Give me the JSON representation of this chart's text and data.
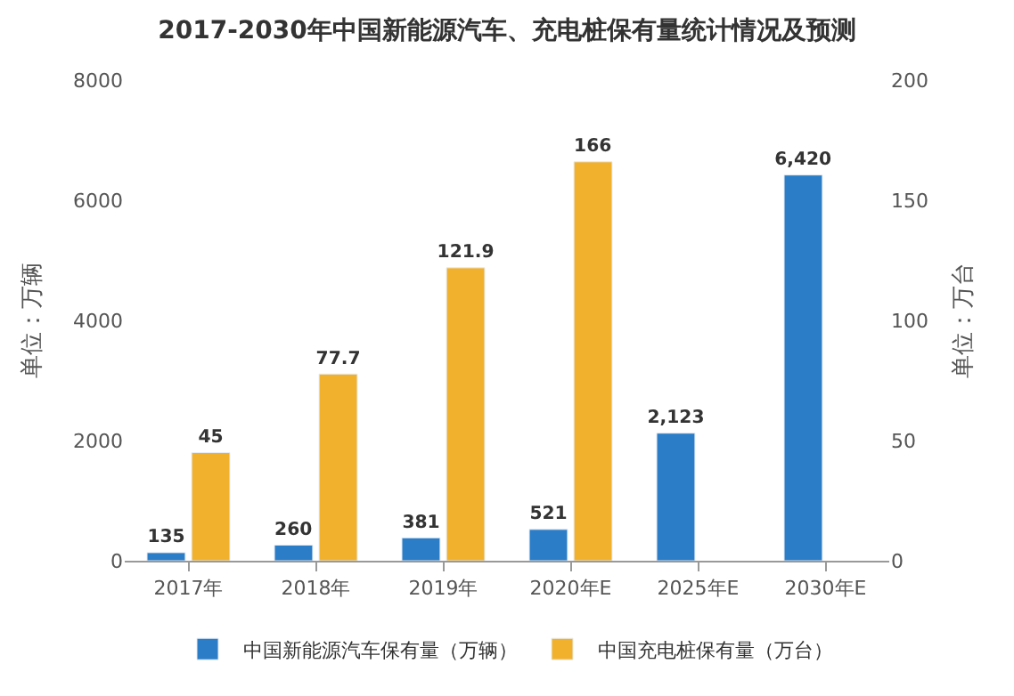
{
  "chart_data": {
    "type": "bar",
    "title": "2017-2030年中国新能源汽车、充电桩保有量统计情况及预测",
    "categories": [
      "2017年",
      "2018年",
      "2019年",
      "2020年E",
      "2025年E",
      "2030年E"
    ],
    "series": [
      {
        "name": "中国新能源汽车保有量（万辆）",
        "color": "#2a7dc6",
        "values": [
          135,
          260,
          381,
          521,
          2123,
          6420
        ],
        "value_labels": [
          "135",
          "260",
          "381",
          "521",
          "2,123",
          "6,420"
        ]
      },
      {
        "name": "中国充电桩保有量（万台）",
        "color": "#f1b12d",
        "axis": "y2",
        "values": [
          45,
          77.7,
          121.9,
          166,
          null,
          null
        ],
        "value_labels": [
          "45",
          "77.7",
          "121.9",
          "166",
          null,
          null
        ]
      }
    ],
    "ylabel": "单位：万辆",
    "y2label": "单位：万台",
    "ylim": [
      0,
      8000
    ],
    "yticks": [
      0,
      2000,
      4000,
      6000,
      8000
    ],
    "y2lim": [
      0,
      200
    ],
    "y2ticks": [
      0,
      50,
      100,
      150,
      200
    ],
    "legend": "bottom"
  }
}
